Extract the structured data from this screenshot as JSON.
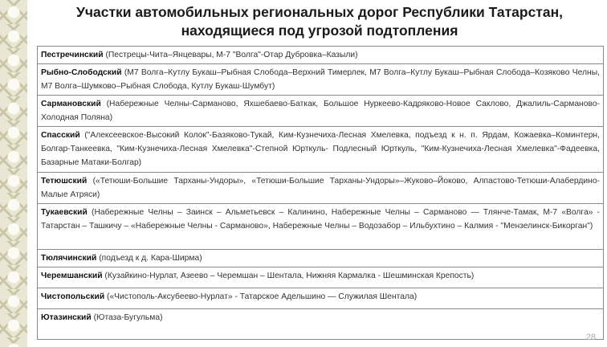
{
  "title_line1": "Участки автомобильных региональных дорог Республики Татарстан,",
  "title_line2": "находящиеся под угрозой подтопления",
  "rows": [
    {
      "district": "Пестречинский",
      "roads": "(Пестрецы-Чита–Янцевары, М-7 \"Волга\"-Отар Дубровка–Казыли)"
    },
    {
      "district": "Рыбно-Слободский",
      "roads": "(М7 Волга–Кутлу Букаш–Рыбная Слобода–Верхний Тимерлек, М7 Волга–Кутлу Букаш–Рыбная Слобода–Козяково Челны, М7 Волга–Шумково–Рыбная Слобода, Кутлу Букаш-Шумбут)"
    },
    {
      "district": "Сармановский",
      "roads": "(Набережные Челны-Сарманово, Яхшебаево-Баткак, Большое Нуркеево-Кадряково-Новое Саклово, Джалиль-Сарманово-Холодная Поляна)"
    },
    {
      "district": "Спасский",
      "roads": "(\"Алексеевское-Высокий Колок\"-Базяково-Тукай, Ким-Кузнечиха-Лесная Хмелевка, подъезд к н. п. Ярдам, Кожаевка–Коминтерн, Болгар-Танкеевка, \"Ким-Кузнечиха-Лесная Хмелевка\"-Степной Юрткуль- Подлесный Юрткуль, \"Ким-Кузнечиха-Лесная Хмелевка\"-Фадеевка, Базарные Матаки-Болгар)"
    },
    {
      "district": "Тетюшский",
      "roads": "(«Тетюши-Большие Тарханы-Ундоры», «Тетюши-Большие Тарханы-Ундоры»–Жуково–Йоково, Алпастово-Тетюши-Алабердино-Малые Атряси)"
    },
    {
      "district": "Тукаевский",
      "roads": "(Набережные Челны – Заинск – Альметьевск – Калинино, Набережные Челны – Сарманово — Тлянче-Тамак, М-7 «Волга» - Татарстан – Ташкичу – «Набережные Челны - Сарманово», Набережные Челны – Водозабор – Ильбухтино – Калмия - \"Мензелинск-Бикорган\")"
    },
    {
      "district": "Тюлячинский",
      "roads": "(подъезд к д. Кара-Ширма)"
    },
    {
      "district": "Черемшанский",
      "roads": "(Кузайкино-Нурлат, Азеево – Черемшан – Шентала, Нижняя Кармалка - Шешминская Крепость)"
    },
    {
      "district": "Чистопольский",
      "roads": "(«Чистополь-Аксубеево-Нурлат» - Татарское Адельшино — Служилая Шентала)"
    },
    {
      "district": "Ютазинский",
      "roads": "(Ютаза-Бугульма)"
    }
  ],
  "page_number": "28"
}
